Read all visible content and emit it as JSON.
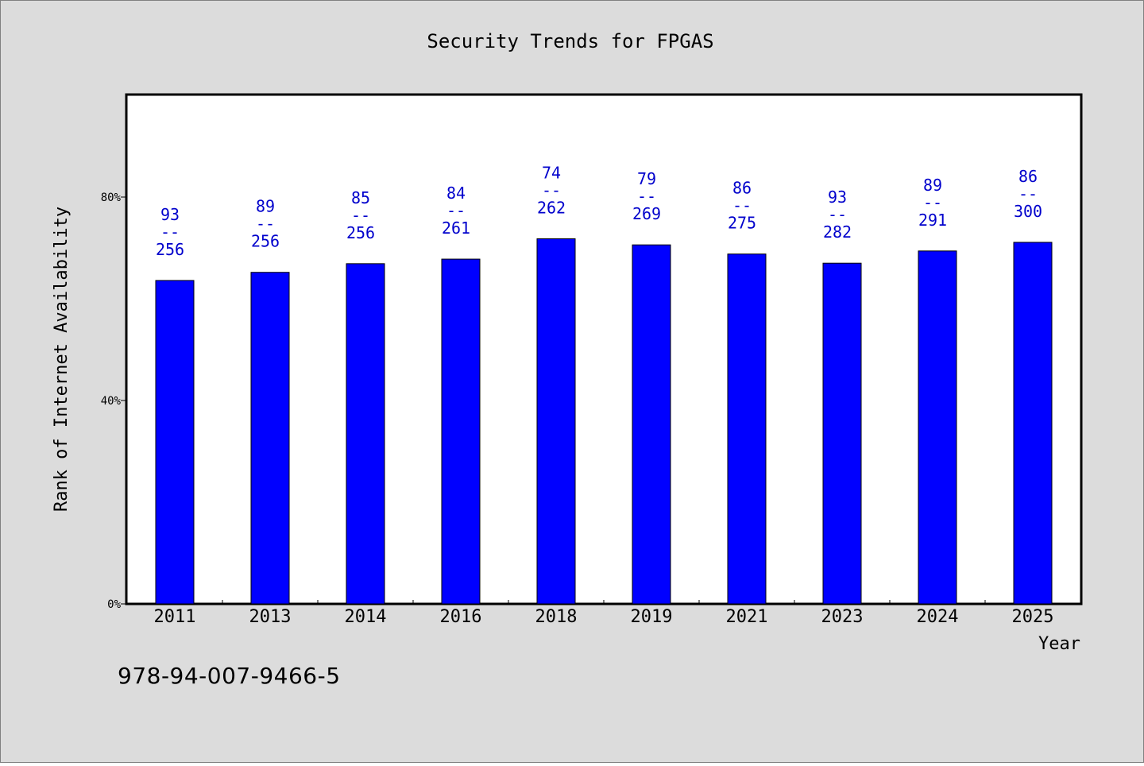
{
  "page": {
    "background": "#dcdcdc",
    "plot_background": "#ffffff",
    "footer_text": "978-94-007-9466-5"
  },
  "chart_data": {
    "type": "bar",
    "title": "Security Trends for FPGAS",
    "xlabel": "Year",
    "ylabel": "Rank of Internet Availability",
    "categories": [
      "2011",
      "2013",
      "2014",
      "2016",
      "2018",
      "2019",
      "2021",
      "2023",
      "2024",
      "2025"
    ],
    "values": [
      63.6,
      65.2,
      66.9,
      67.8,
      71.8,
      70.6,
      68.8,
      67.0,
      69.4,
      71.1
    ],
    "bar_labels": [
      {
        "top": "93",
        "sep": "--",
        "bottom": "256"
      },
      {
        "top": "89",
        "sep": "--",
        "bottom": "256"
      },
      {
        "top": "85",
        "sep": "--",
        "bottom": "256"
      },
      {
        "top": "84",
        "sep": "--",
        "bottom": "261"
      },
      {
        "top": "74",
        "sep": "--",
        "bottom": "262"
      },
      {
        "top": "79",
        "sep": "--",
        "bottom": "269"
      },
      {
        "top": "86",
        "sep": "--",
        "bottom": "275"
      },
      {
        "top": "93",
        "sep": "--",
        "bottom": "282"
      },
      {
        "top": "89",
        "sep": "--",
        "bottom": "291"
      },
      {
        "top": "86",
        "sep": "--",
        "bottom": "300"
      }
    ],
    "ylim": [
      0,
      100
    ],
    "yticks": [
      0,
      40,
      80
    ],
    "ytick_labels": [
      "0%",
      "40%",
      "80%"
    ],
    "grid": false,
    "legend": "none",
    "bar_color": "#0000ff",
    "label_color": "#0000cc"
  }
}
